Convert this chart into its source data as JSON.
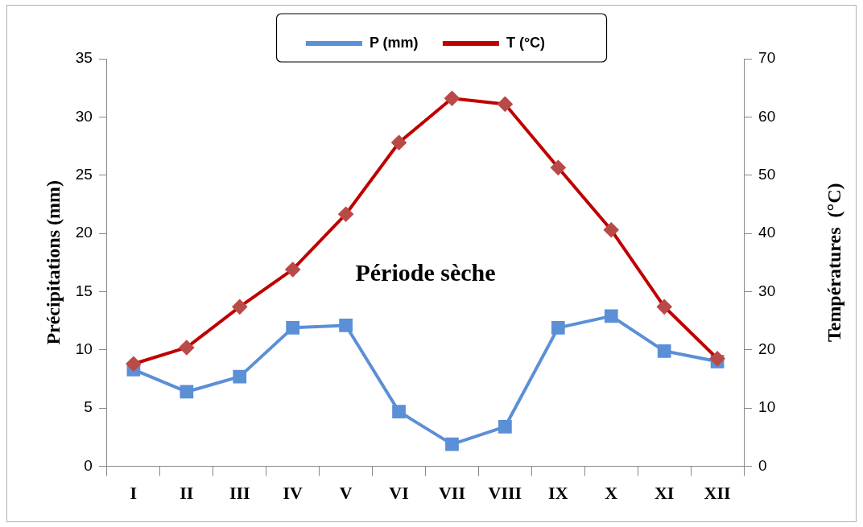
{
  "chart_data": {
    "type": "line",
    "ylabel": "Précipitations (mm)",
    "y2label": "Températures  (°C)",
    "categories": [
      "I",
      "II",
      "III",
      "IV",
      "V",
      "VI",
      "VII",
      "VIII",
      "IX",
      "X",
      "XI",
      "XII"
    ],
    "series": [
      {
        "name": "P (mm)",
        "color": "#5b8fd6",
        "marker": "square",
        "values": [
          8.3,
          6.4,
          7.7,
          11.9,
          12.1,
          4.7,
          1.9,
          3.4,
          11.9,
          12.9,
          9.9,
          9.0
        ]
      },
      {
        "name": "T (°C)",
        "color": "#c00000",
        "marker": "diamond",
        "axis": "y2",
        "values": [
          17.6,
          20.4,
          27.4,
          33.8,
          43.3,
          55.6,
          63.2,
          62.2,
          51.3,
          40.6,
          27.4,
          18.5
        ]
      }
    ],
    "ylim": [
      0,
      35
    ],
    "yticks": [
      0,
      5,
      10,
      15,
      20,
      25,
      30,
      35
    ],
    "y2lim": [
      0,
      70
    ],
    "y2ticks": [
      0,
      10,
      20,
      30,
      40,
      50,
      60,
      70
    ],
    "annotations": [
      "Période sèche"
    ],
    "legend": "top",
    "grid": false,
    "line_style": "solid"
  }
}
